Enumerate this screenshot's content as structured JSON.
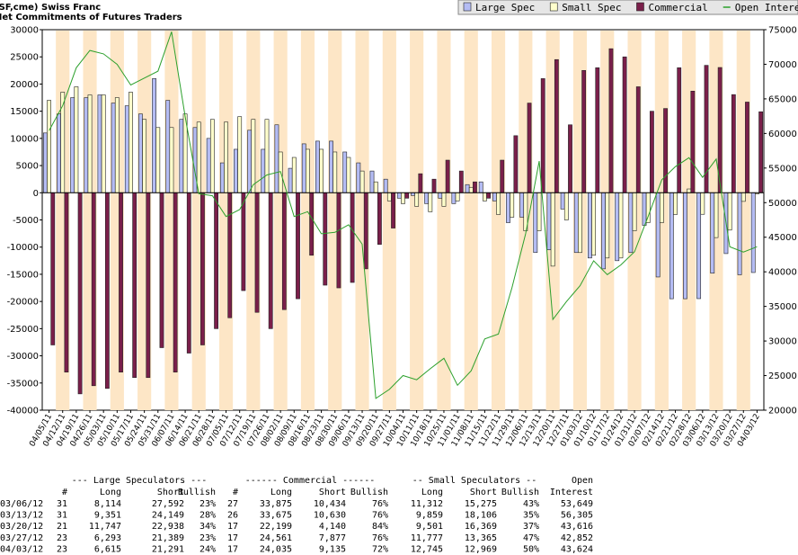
{
  "chart_data": {
    "type": "bar",
    "title": "(SF,cme) Swiss Franc",
    "subtitle": "Net Commitments of Futures Traders",
    "categories": [
      "04/05/11",
      "04/12/11",
      "04/19/11",
      "04/26/11",
      "05/03/11",
      "05/10/11",
      "05/17/11",
      "05/24/11",
      "05/31/11",
      "06/07/11",
      "06/14/11",
      "06/21/11",
      "06/28/11",
      "07/05/11",
      "07/12/11",
      "07/19/11",
      "07/26/11",
      "08/02/11",
      "08/09/11",
      "08/16/11",
      "08/23/11",
      "08/30/11",
      "09/06/11",
      "09/13/11",
      "09/20/11",
      "09/27/11",
      "10/04/11",
      "10/11/11",
      "10/18/11",
      "10/25/11",
      "11/01/11",
      "11/08/11",
      "11/15/11",
      "11/22/11",
      "11/29/11",
      "12/06/11",
      "12/13/11",
      "12/20/11",
      "12/27/11",
      "01/03/12",
      "01/10/12",
      "01/17/12",
      "01/24/12",
      "01/31/12",
      "02/07/12",
      "02/14/12",
      "02/21/12",
      "02/28/12",
      "03/06/12",
      "03/13/12",
      "03/20/12",
      "03/27/12",
      "04/03/12"
    ],
    "series": [
      {
        "name": "Large Spec",
        "color": "#b4bcf4",
        "values": [
          11000,
          14500,
          17500,
          17500,
          18000,
          16500,
          16000,
          14500,
          21000,
          17000,
          13500,
          12000,
          10000,
          5500,
          8000,
          11500,
          8000,
          12500,
          4500,
          9000,
          9500,
          9500,
          7500,
          5500,
          4000,
          2500,
          -1000,
          -500,
          -2000,
          -1000,
          -2000,
          1500,
          2000,
          -1500,
          -5500,
          -4500,
          -11000,
          -10500,
          -3000,
          -11000,
          -12000,
          -14000,
          -12500,
          -11000,
          -6000,
          -15500,
          -19500,
          -19500,
          -19478,
          -14798,
          -11191,
          -15096,
          -14676
        ]
      },
      {
        "name": "Small Spec",
        "color": "#ffffcc",
        "values": [
          17000,
          18500,
          19500,
          18000,
          18000,
          17500,
          18500,
          13500,
          12000,
          12000,
          14500,
          13000,
          13500,
          13000,
          14000,
          13500,
          13500,
          7500,
          6500,
          8000,
          8000,
          7500,
          6500,
          4000,
          2000,
          -1500,
          -2000,
          -2500,
          -3500,
          -2500,
          -1500,
          1000,
          -1500,
          -4000,
          -4500,
          -7000,
          -7000,
          -13500,
          -5000,
          -11000,
          -11500,
          -12000,
          -12000,
          -7000,
          -5500,
          -5500,
          -4000,
          700,
          -3963,
          -8247,
          -6868,
          -1588,
          -224
        ]
      },
      {
        "name": "Commercial",
        "color": "#7a1f4a",
        "values": [
          -28000,
          -33000,
          -37000,
          -35500,
          -36000,
          -33000,
          -34000,
          -34000,
          -28500,
          -33000,
          -29500,
          -28000,
          -25000,
          -23000,
          -18000,
          -22000,
          -25000,
          -21500,
          -19500,
          -11500,
          -17000,
          -17500,
          -16500,
          -14000,
          -9500,
          -6500,
          -1000,
          3500,
          2500,
          6000,
          4000,
          2000,
          -1000,
          6000,
          10500,
          16500,
          21000,
          24500,
          12500,
          22500,
          23000,
          26500,
          25000,
          19500,
          15000,
          15500,
          23000,
          18700,
          23441,
          23045,
          18059,
          16684,
          14900
        ]
      },
      {
        "name": "Open Interest",
        "color": "#2ca02c",
        "axis": "y2",
        "values": [
          60400,
          64000,
          69500,
          72000,
          71500,
          70000,
          67000,
          68000,
          69000,
          74700,
          62400,
          51300,
          51000,
          48000,
          49000,
          52600,
          54000,
          54500,
          48000,
          48700,
          45500,
          45700,
          46800,
          44000,
          21700,
          23000,
          25000,
          24400,
          26000,
          27500,
          23600,
          25700,
          30300,
          31000,
          37700,
          45500,
          56000,
          33100,
          35700,
          38000,
          41600,
          39600,
          41000,
          42900,
          48000,
          53300,
          55200,
          56500,
          53649,
          56305,
          43616,
          42852,
          43624
        ]
      }
    ],
    "ylim": [
      -40000,
      30000
    ],
    "yticks": [
      -40000,
      -35000,
      -30000,
      -25000,
      -20000,
      -15000,
      -10000,
      -5000,
      0,
      5000,
      10000,
      15000,
      20000,
      25000,
      30000
    ],
    "y2lim": [
      20000,
      75000
    ],
    "y2ticks": [
      20000,
      25000,
      30000,
      35000,
      40000,
      45000,
      50000,
      55000,
      60000,
      65000,
      70000,
      75000
    ],
    "grid": false,
    "legend": "top-right"
  },
  "table": {
    "group_headers": [
      "--- Large Speculators ---",
      "------ Commercial ------",
      "-- Small Speculators --",
      "Open"
    ],
    "columns": [
      "#",
      "Long",
      "Short",
      "Bullish",
      "#",
      "Long",
      "Short",
      "Bullish",
      "Long",
      "Short",
      "Bullish",
      "Interest"
    ],
    "rows": [
      [
        "03/06/12",
        "31",
        "8,114",
        "27,592",
        "23%",
        "27",
        "33,875",
        "10,434",
        "76%",
        "11,312",
        "15,275",
        "43%",
        "53,649"
      ],
      [
        "03/13/12",
        "31",
        "9,351",
        "24,149",
        "28%",
        "26",
        "33,675",
        "10,630",
        "76%",
        "9,859",
        "18,106",
        "35%",
        "56,305"
      ],
      [
        "03/20/12",
        "21",
        "11,747",
        "22,938",
        "34%",
        "17",
        "22,199",
        "4,140",
        "84%",
        "9,501",
        "16,369",
        "37%",
        "43,616"
      ],
      [
        "03/27/12",
        "23",
        "6,293",
        "21,389",
        "23%",
        "17",
        "24,561",
        "7,877",
        "76%",
        "11,777",
        "13,365",
        "47%",
        "42,852"
      ],
      [
        "04/03/12",
        "23",
        "6,615",
        "21,291",
        "24%",
        "17",
        "24,035",
        "9,135",
        "72%",
        "12,745",
        "12,969",
        "50%",
        "43,624"
      ]
    ]
  }
}
